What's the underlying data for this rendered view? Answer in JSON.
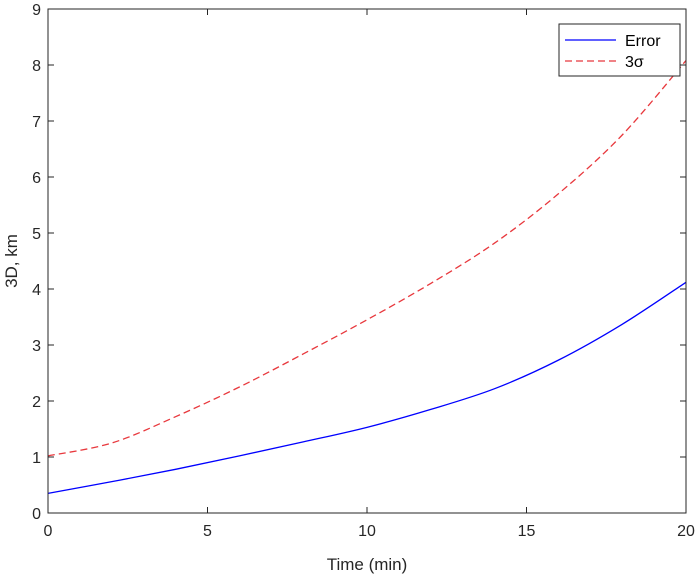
{
  "chart_data": {
    "type": "line",
    "xlabel": "Time (min)",
    "ylabel": "3D, km",
    "xlim": [
      0,
      20
    ],
    "ylim": [
      0,
      9
    ],
    "xticks": [
      "0",
      "5",
      "10",
      "15",
      "20"
    ],
    "yticks": [
      "0",
      "1",
      "2",
      "3",
      "4",
      "5",
      "6",
      "7",
      "8",
      "9"
    ],
    "grid": false,
    "legend_position": "top-right",
    "x": [
      0,
      2,
      4,
      6,
      8,
      10,
      12,
      14,
      16,
      18,
      20
    ],
    "series": [
      {
        "name": "Error",
        "color": "#0000ff",
        "dash": "solid",
        "values": [
          0.35,
          0.56,
          0.78,
          1.02,
          1.27,
          1.53,
          1.85,
          2.22,
          2.73,
          3.37,
          4.12
        ]
      },
      {
        "name": "3σ",
        "color": "#e8383d",
        "dash": "dashed",
        "values": [
          1.02,
          1.25,
          1.72,
          2.25,
          2.84,
          3.45,
          4.1,
          4.82,
          5.7,
          6.75,
          8.08
        ]
      }
    ]
  }
}
